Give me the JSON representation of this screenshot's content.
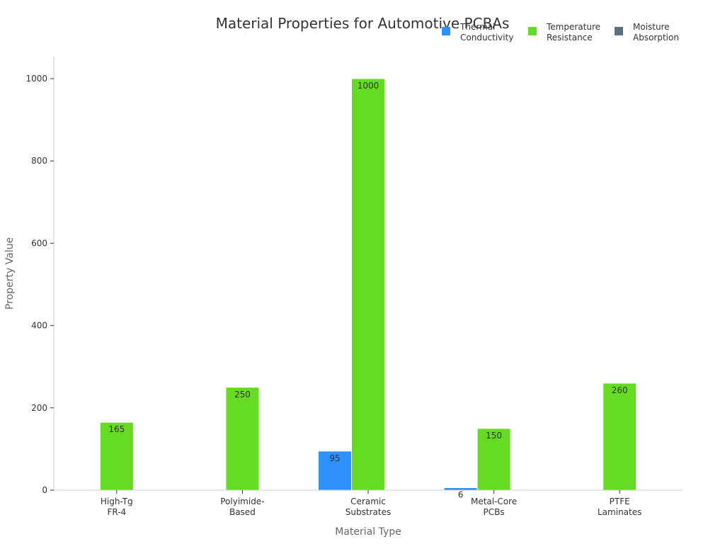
{
  "chart_data": {
    "type": "bar",
    "title": "Material Properties for Automotive PCBAs",
    "xlabel": "Material Type",
    "ylabel": "Property Value",
    "categories": [
      "High-Tg\nFR-4",
      "Polyimide-\nBased",
      "Ceramic\nSubstrates",
      "Metal-Core\nPCBs",
      "PTFE\nLaminates"
    ],
    "series": [
      {
        "name": "Thermal\nConductivity",
        "color": "#2e90fa",
        "values": [
          0.3,
          0.2,
          95,
          6,
          0.25
        ]
      },
      {
        "name": "Temperature\nResistance",
        "color": "#66db23",
        "values": [
          165,
          250,
          1000,
          150,
          260
        ]
      },
      {
        "name": "Moisture\nAbsorption",
        "color": "#5b6e7f",
        "values": [
          0.1,
          0.5,
          0.02,
          0.05,
          0.02
        ]
      }
    ],
    "data_labels": [
      [
        "",
        "",
        "95",
        "6",
        ""
      ],
      [
        "165",
        "250",
        "1000",
        "150",
        "260"
      ],
      [
        "",
        "",
        "",
        "",
        ""
      ]
    ],
    "ylim": [
      0,
      1050
    ],
    "yticks": [
      0,
      200,
      400,
      600,
      800,
      1000
    ],
    "grid": false,
    "legend_position": "top-right"
  }
}
